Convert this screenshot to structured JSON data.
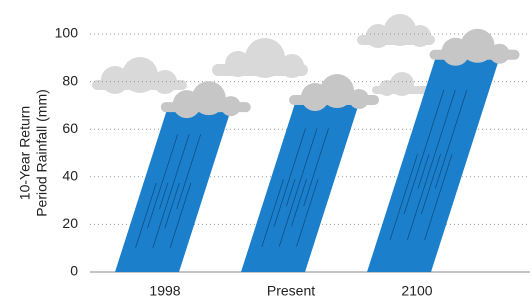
{
  "chart_data": {
    "type": "bar",
    "ylabel": [
      "10-Year Return",
      "Period Rainfall (mm)"
    ],
    "categories": [
      "1998",
      "Present",
      "2100"
    ],
    "values": [
      68,
      71,
      90
    ],
    "color": "#1b7fcc",
    "ylim": [
      0,
      100
    ],
    "yticks": [
      0,
      20,
      40,
      60,
      80,
      100
    ],
    "grid": true
  }
}
